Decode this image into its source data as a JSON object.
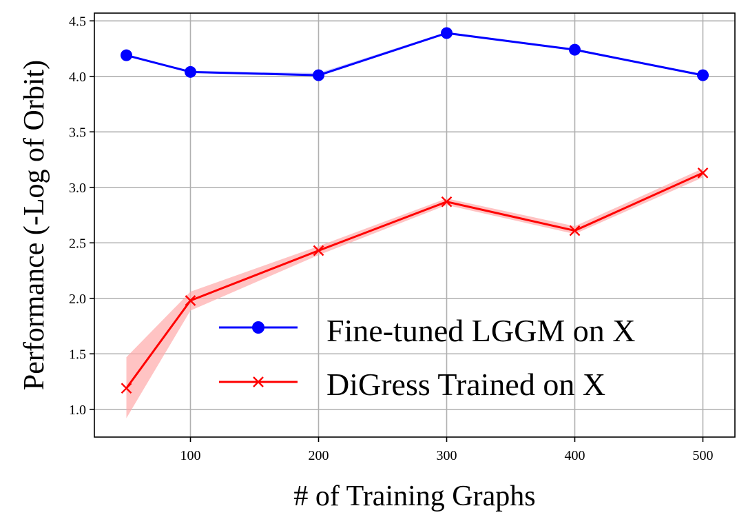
{
  "chart_data": {
    "type": "line",
    "xlabel": "# of Training Graphs",
    "ylabel": "Performance (-Log of Orbit)",
    "x": [
      50,
      100,
      200,
      300,
      400,
      500
    ],
    "xlim": [
      25,
      525
    ],
    "ylim": [
      0.75,
      4.57
    ],
    "xticks": [
      100,
      200,
      300,
      400,
      500
    ],
    "yticks": [
      1.0,
      1.5,
      2.0,
      2.5,
      3.0,
      3.5,
      4.0,
      4.5
    ],
    "xtick_labels": [
      "100",
      "200",
      "300",
      "400",
      "500"
    ],
    "ytick_labels": [
      "1.0",
      "1.5",
      "2.0",
      "2.5",
      "3.0",
      "3.5",
      "4.0",
      "4.5"
    ],
    "grid": true,
    "legend_position": "lower-right",
    "series": [
      {
        "name": "Fine-tuned LGGM on X",
        "color": "#0000ff",
        "marker": "circle",
        "values": [
          4.19,
          4.04,
          4.01,
          4.39,
          4.24,
          4.01
        ],
        "lower": [
          4.18,
          4.03,
          4.0,
          4.38,
          4.23,
          4.0
        ],
        "upper": [
          4.2,
          4.05,
          4.03,
          4.4,
          4.25,
          4.02
        ]
      },
      {
        "name": "DiGress Trained on X",
        "color": "#ff0000",
        "band_color": "#ffaaaa",
        "marker": "x",
        "values": [
          1.19,
          1.98,
          2.43,
          2.87,
          2.61,
          3.13
        ],
        "lower": [
          0.92,
          1.89,
          2.39,
          2.84,
          2.58,
          3.09
        ],
        "upper": [
          1.47,
          2.06,
          2.47,
          2.9,
          2.65,
          3.17
        ]
      }
    ]
  }
}
